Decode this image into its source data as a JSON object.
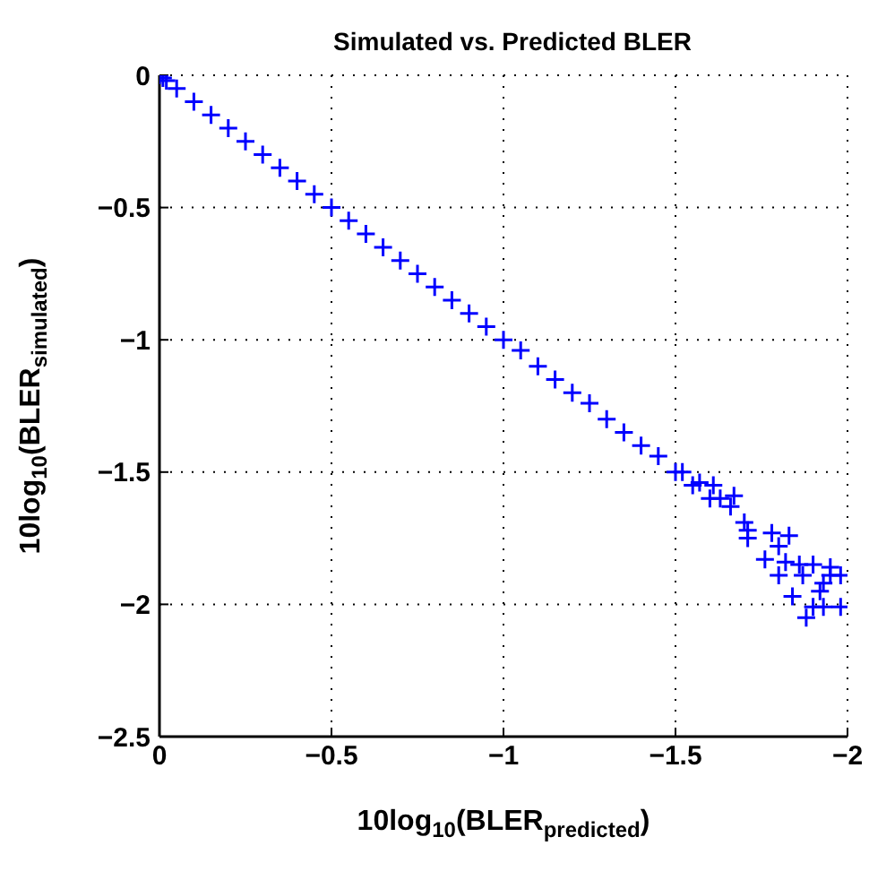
{
  "chart_data": {
    "type": "scatter",
    "title": "Simulated vs. Predicted BLER",
    "xlabel": "10log$_{10}$(BLER$_{predicted}$)",
    "ylabel": "10log$_{10}$(BLER$_{simulated}$)",
    "xlim": [
      0,
      -2
    ],
    "ylim": [
      -2.5,
      0
    ],
    "xticks": [
      0,
      -0.5,
      -1,
      -1.5,
      -2
    ],
    "yticks": [
      -2.5,
      -2,
      -1.5,
      -1,
      -0.5,
      0
    ],
    "grid": true,
    "marker": "cross",
    "series": [
      {
        "color": "#0000ff",
        "x": [
          0,
          -0.01,
          -0.02,
          -0.05,
          -0.1,
          -0.15,
          -0.2,
          -0.25,
          -0.3,
          -0.35,
          -0.4,
          -0.45,
          -0.5,
          -0.55,
          -0.6,
          -0.65,
          -0.7,
          -0.75,
          -0.8,
          -0.85,
          -0.9,
          -0.95,
          -1,
          -1.05,
          -1.1,
          -1.15,
          -1.2,
          -1.25,
          -1.3,
          -1.35,
          -1.4,
          -1.45,
          -1.5,
          -1.52,
          -1.55,
          -1.57,
          -1.6,
          -1.61,
          -1.63,
          -1.66,
          -1.67,
          -1.7,
          -1.71,
          -1.71,
          -1.78,
          -1.83,
          -1.76,
          -1.8,
          -1.82,
          -1.86,
          -1.9,
          -1.95,
          -1.98,
          -1.8,
          -1.84,
          -1.92,
          -1.9,
          -1.95,
          -1.98,
          -1.88,
          -1.93,
          -1.93,
          -1.87
        ],
        "values": [
          0,
          -0.01,
          -0.02,
          -0.05,
          -0.1,
          -0.15,
          -0.2,
          -0.25,
          -0.3,
          -0.35,
          -0.4,
          -0.45,
          -0.5,
          -0.55,
          -0.6,
          -0.65,
          -0.7,
          -0.75,
          -0.8,
          -0.85,
          -0.9,
          -0.95,
          -1,
          -1.04,
          -1.1,
          -1.15,
          -1.2,
          -1.24,
          -1.3,
          -1.35,
          -1.4,
          -1.44,
          -1.5,
          -1.5,
          -1.55,
          -1.54,
          -1.6,
          -1.55,
          -1.6,
          -1.63,
          -1.59,
          -1.69,
          -1.72,
          -1.75,
          -1.73,
          -1.74,
          -1.83,
          -1.78,
          -1.84,
          -1.85,
          -1.85,
          -1.86,
          -1.89,
          -1.89,
          -1.97,
          -1.95,
          -2.01,
          -1.89,
          -2.01,
          -2.05,
          -2.01,
          -1.92,
          -1.89
        ]
      }
    ]
  }
}
